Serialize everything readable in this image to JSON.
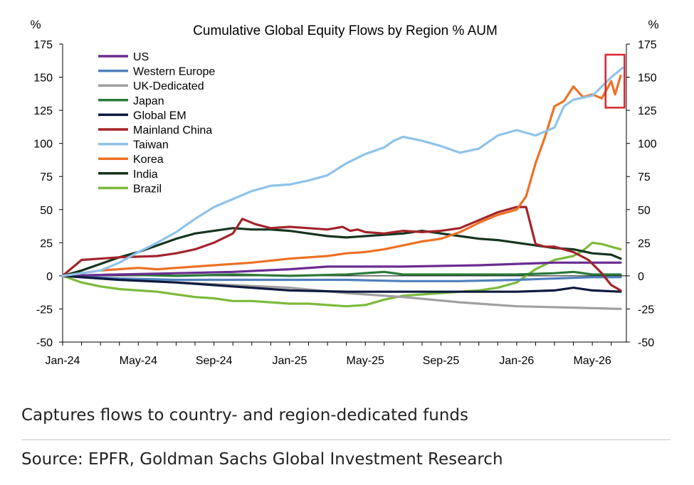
{
  "chart_data": {
    "type": "line",
    "title": "Cumulative Global Equity Flows by Region % AUM",
    "left_unit": "%",
    "right_unit": "%",
    "ylim": [
      -50,
      175
    ],
    "yticks": [
      -50,
      -25,
      0,
      25,
      50,
      75,
      100,
      125,
      150,
      175
    ],
    "x_tick_labels": [
      "Jan-24",
      "May-24",
      "Sep-24",
      "Jan-25",
      "May-25",
      "Sep-25",
      "Jan-26",
      "May-26"
    ],
    "x_tick_months": [
      0,
      4,
      8,
      12,
      16,
      20,
      24,
      28
    ],
    "xlim_months": [
      0,
      29.8
    ],
    "grid": false,
    "legend_position": "top-left",
    "highlight_box": {
      "x_range_months": [
        28.7,
        29.7
      ],
      "y_range": [
        127,
        167
      ],
      "color": "#d9262c"
    },
    "series": [
      {
        "name": "US",
        "color": "#6a2c91",
        "points": [
          [
            0,
            0
          ],
          [
            3,
            1
          ],
          [
            6,
            2
          ],
          [
            9,
            3
          ],
          [
            12,
            5
          ],
          [
            14,
            7
          ],
          [
            18,
            7
          ],
          [
            22,
            8
          ],
          [
            24,
            9
          ],
          [
            26,
            10
          ],
          [
            28,
            10
          ],
          [
            29.5,
            10
          ]
        ]
      },
      {
        "name": "Western Europe",
        "color": "#4f81bd",
        "points": [
          [
            0,
            0
          ],
          [
            3,
            -2
          ],
          [
            6,
            -3
          ],
          [
            9,
            -3
          ],
          [
            12,
            -3
          ],
          [
            15,
            -3
          ],
          [
            18,
            -4
          ],
          [
            21,
            -4
          ],
          [
            24,
            -3
          ],
          [
            26,
            -2
          ],
          [
            28,
            -1
          ],
          [
            29.5,
            -1
          ]
        ]
      },
      {
        "name": "UK-Dedicated",
        "color": "#a0a0a0",
        "points": [
          [
            0,
            0
          ],
          [
            3,
            -3
          ],
          [
            6,
            -5
          ],
          [
            9,
            -7
          ],
          [
            12,
            -9
          ],
          [
            15,
            -13
          ],
          [
            18,
            -16
          ],
          [
            21,
            -20
          ],
          [
            24,
            -23
          ],
          [
            27,
            -24
          ],
          [
            29.5,
            -25
          ]
        ]
      },
      {
        "name": "Japan",
        "color": "#2a7a3a",
        "points": [
          [
            0,
            0
          ],
          [
            3,
            1
          ],
          [
            6,
            0
          ],
          [
            9,
            1
          ],
          [
            12,
            0
          ],
          [
            15,
            1
          ],
          [
            17,
            3
          ],
          [
            18,
            1
          ],
          [
            21,
            1
          ],
          [
            24,
            1
          ],
          [
            26,
            2
          ],
          [
            27,
            3
          ],
          [
            28,
            1
          ],
          [
            29.5,
            1
          ]
        ]
      },
      {
        "name": "Global EM",
        "color": "#0d1a3e",
        "points": [
          [
            0,
            0
          ],
          [
            3,
            -3
          ],
          [
            6,
            -5
          ],
          [
            9,
            -8
          ],
          [
            12,
            -11
          ],
          [
            15,
            -12
          ],
          [
            18,
            -12
          ],
          [
            21,
            -12
          ],
          [
            24,
            -12
          ],
          [
            26,
            -11
          ],
          [
            27,
            -9
          ],
          [
            28,
            -11
          ],
          [
            29.5,
            -12
          ]
        ]
      },
      {
        "name": "Mainland China",
        "color": "#a3242a",
        "points": [
          [
            0,
            0
          ],
          [
            1,
            12
          ],
          [
            2,
            13
          ],
          [
            3,
            14
          ],
          [
            5,
            15
          ],
          [
            6,
            17
          ],
          [
            7,
            20
          ],
          [
            8,
            25
          ],
          [
            9,
            32
          ],
          [
            9.5,
            43
          ],
          [
            10.2,
            39
          ],
          [
            11,
            36
          ],
          [
            12,
            37
          ],
          [
            13,
            36
          ],
          [
            14,
            35
          ],
          [
            14.8,
            37
          ],
          [
            15.2,
            34
          ],
          [
            15.6,
            35
          ],
          [
            16,
            33
          ],
          [
            17,
            32
          ],
          [
            18,
            34
          ],
          [
            19,
            33
          ],
          [
            20,
            34
          ],
          [
            21,
            36
          ],
          [
            22,
            42
          ],
          [
            23,
            48
          ],
          [
            24,
            52
          ],
          [
            24.5,
            52
          ],
          [
            25,
            24
          ],
          [
            25.5,
            22
          ],
          [
            26,
            22
          ],
          [
            27,
            18
          ],
          [
            27.8,
            12
          ],
          [
            28.5,
            2
          ],
          [
            29,
            -7
          ],
          [
            29.5,
            -11
          ]
        ]
      },
      {
        "name": "Taiwan",
        "color": "#8ec3ea",
        "points": [
          [
            0,
            0
          ],
          [
            2,
            4
          ],
          [
            3,
            10
          ],
          [
            4,
            18
          ],
          [
            5,
            25
          ],
          [
            6,
            33
          ],
          [
            7,
            43
          ],
          [
            8,
            52
          ],
          [
            9,
            58
          ],
          [
            10,
            64
          ],
          [
            11,
            68
          ],
          [
            12,
            69
          ],
          [
            13,
            72
          ],
          [
            14,
            76
          ],
          [
            15,
            85
          ],
          [
            16,
            92
          ],
          [
            17,
            97
          ],
          [
            17.5,
            102
          ],
          [
            18,
            105
          ],
          [
            19,
            102
          ],
          [
            20,
            98
          ],
          [
            21,
            93
          ],
          [
            22,
            96
          ],
          [
            23,
            106
          ],
          [
            24,
            110
          ],
          [
            25,
            106
          ],
          [
            26,
            112
          ],
          [
            26.5,
            128
          ],
          [
            27,
            133
          ],
          [
            28,
            136
          ],
          [
            29,
            150
          ],
          [
            29.6,
            157
          ]
        ]
      },
      {
        "name": "Korea",
        "color": "#ec7125",
        "points": [
          [
            0,
            0
          ],
          [
            2,
            4
          ],
          [
            4,
            6
          ],
          [
            5,
            5
          ],
          [
            6,
            6
          ],
          [
            8,
            8
          ],
          [
            10,
            10
          ],
          [
            12,
            13
          ],
          [
            14,
            15
          ],
          [
            15,
            17
          ],
          [
            16,
            18
          ],
          [
            17,
            20
          ],
          [
            18,
            23
          ],
          [
            19,
            26
          ],
          [
            20,
            28
          ],
          [
            21,
            33
          ],
          [
            22,
            40
          ],
          [
            23,
            46
          ],
          [
            24,
            50
          ],
          [
            24.5,
            60
          ],
          [
            25,
            85
          ],
          [
            25.5,
            105
          ],
          [
            26,
            128
          ],
          [
            26.5,
            132
          ],
          [
            27,
            143
          ],
          [
            27.5,
            135
          ],
          [
            28,
            137
          ],
          [
            28.5,
            134
          ],
          [
            29,
            147
          ],
          [
            29.2,
            137
          ],
          [
            29.5,
            151
          ]
        ]
      },
      {
        "name": "India",
        "color": "#15351f",
        "points": [
          [
            0,
            0
          ],
          [
            1,
            4
          ],
          [
            2,
            9
          ],
          [
            3,
            14
          ],
          [
            4,
            18
          ],
          [
            5,
            23
          ],
          [
            6,
            28
          ],
          [
            7,
            32
          ],
          [
            8,
            34
          ],
          [
            9,
            36
          ],
          [
            10,
            35
          ],
          [
            11,
            35
          ],
          [
            12,
            34
          ],
          [
            13,
            32
          ],
          [
            14,
            30
          ],
          [
            15,
            29
          ],
          [
            16,
            30
          ],
          [
            17,
            31
          ],
          [
            18,
            32
          ],
          [
            19,
            34
          ],
          [
            20,
            32
          ],
          [
            21,
            30
          ],
          [
            22,
            28
          ],
          [
            23,
            27
          ],
          [
            24,
            25
          ],
          [
            25,
            23
          ],
          [
            26,
            21
          ],
          [
            27,
            20
          ],
          [
            28,
            17
          ],
          [
            29,
            16
          ],
          [
            29.5,
            13
          ]
        ]
      },
      {
        "name": "Brazil",
        "color": "#7cba3c",
        "points": [
          [
            0,
            0
          ],
          [
            1,
            -5
          ],
          [
            2,
            -8
          ],
          [
            3,
            -10
          ],
          [
            4,
            -11
          ],
          [
            5,
            -12
          ],
          [
            6,
            -14
          ],
          [
            7,
            -16
          ],
          [
            8,
            -17
          ],
          [
            9,
            -19
          ],
          [
            10,
            -19
          ],
          [
            11,
            -20
          ],
          [
            12,
            -21
          ],
          [
            13,
            -21
          ],
          [
            14,
            -22
          ],
          [
            15,
            -23
          ],
          [
            16,
            -22
          ],
          [
            17,
            -18
          ],
          [
            18,
            -15
          ],
          [
            19,
            -14
          ],
          [
            20,
            -13
          ],
          [
            21,
            -12
          ],
          [
            22,
            -11
          ],
          [
            23,
            -9
          ],
          [
            24,
            -5
          ],
          [
            25,
            5
          ],
          [
            26,
            12
          ],
          [
            27,
            15
          ],
          [
            27.5,
            19
          ],
          [
            28,
            25
          ],
          [
            28.5,
            24
          ],
          [
            29,
            22
          ],
          [
            29.5,
            20
          ]
        ]
      }
    ]
  },
  "footer": {
    "note": "Captures flows to country- and region-dedicated funds",
    "source": "Source: EPFR, Goldman Sachs Global Investment Research"
  }
}
